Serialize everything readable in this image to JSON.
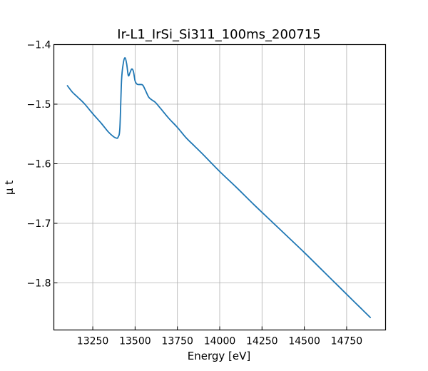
{
  "chart_data": {
    "type": "line",
    "title": "Ir-L1_IrSi_Si311_100ms_200715",
    "xlabel": "Energy [eV]",
    "ylabel": "μ t",
    "xlim": [
      13020,
      14980
    ],
    "ylim": [
      -1.879,
      -1.4
    ],
    "grid": true,
    "x_ticks": [
      13250,
      13500,
      13750,
      14000,
      14250,
      14500,
      14750
    ],
    "y_ticks": [
      -1.4,
      -1.5,
      -1.6,
      -1.7,
      -1.8
    ],
    "x_tick_labels": [
      "13250",
      "13500",
      "13750",
      "14000",
      "14250",
      "14500",
      "14750"
    ],
    "y_tick_labels": [
      "−1.4",
      "−1.5",
      "−1.6",
      "−1.7",
      "−1.8"
    ],
    "series": [
      {
        "color": "#1f77b4",
        "x": [
          13100,
          13130,
          13160,
          13200,
          13250,
          13300,
          13340,
          13370,
          13390,
          13400,
          13410,
          13420,
          13430,
          13440,
          13450,
          13460,
          13470,
          13480,
          13490,
          13500,
          13510,
          13520,
          13530,
          13545,
          13560,
          13580,
          13600,
          13620,
          13650,
          13700,
          13750,
          13800,
          13850,
          13900,
          14000,
          14100,
          14200,
          14300,
          14400,
          14500,
          14600,
          14700,
          14800,
          14890
        ],
        "y": [
          -1.469,
          -1.48,
          -1.488,
          -1.499,
          -1.516,
          -1.532,
          -1.546,
          -1.554,
          -1.557,
          -1.555,
          -1.54,
          -1.46,
          -1.432,
          -1.422,
          -1.432,
          -1.452,
          -1.447,
          -1.441,
          -1.445,
          -1.461,
          -1.466,
          -1.467,
          -1.467,
          -1.468,
          -1.476,
          -1.488,
          -1.493,
          -1.497,
          -1.507,
          -1.524,
          -1.539,
          -1.556,
          -1.57,
          -1.584,
          -1.613,
          -1.64,
          -1.668,
          -1.695,
          -1.722,
          -1.749,
          -1.777,
          -1.805,
          -1.833,
          -1.858
        ]
      }
    ]
  }
}
